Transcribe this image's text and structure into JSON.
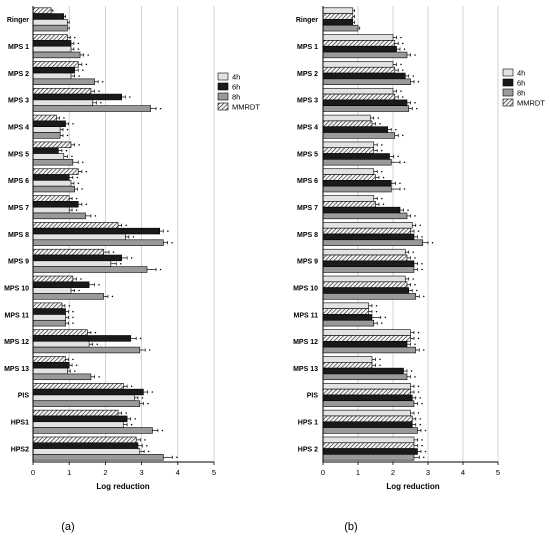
{
  "panels": [
    {
      "letter": "(a)",
      "legend_position": "right",
      "chart_data": {
        "type": "bar",
        "orientation": "horizontal",
        "xlabel": "Log reduction",
        "xlim": [
          0,
          5
        ],
        "xticks": [
          "0",
          "1",
          "2",
          "3",
          "4",
          "5"
        ],
        "grid": "vertical",
        "categories": [
          "Ringer",
          "MPS 1",
          "MPS 2",
          "MPS 3",
          "MPS 4",
          "MPS 5",
          "MPS 6",
          "MPS 7",
          "MPS 8",
          "MPS 9",
          "MPS 10",
          "MPS 11",
          "MPS 12",
          "MPS 13",
          "PIS",
          "HPS1",
          "HPS2"
        ],
        "series": [
          {
            "name": "MMRDT",
            "pattern": "hatched",
            "values": [
              0.5,
              0.95,
              1.25,
              1.6,
              0.65,
              1.05,
              1.25,
              1.0,
              2.35,
              1.95,
              1.1,
              0.8,
              1.5,
              0.9,
              2.5,
              2.35,
              2.85
            ],
            "errors": [
              0.05,
              0.08,
              0.1,
              0.1,
              0.08,
              0.1,
              0.1,
              0.08,
              0.1,
              0.15,
              0.1,
              0.08,
              0.1,
              0.08,
              0.1,
              0.1,
              0.12
            ]
          },
          {
            "name": "6h",
            "pattern": "solid-black",
            "values": [
              0.85,
              1.05,
              1.15,
              2.45,
              0.9,
              0.7,
              1.0,
              1.25,
              3.5,
              2.45,
              1.55,
              0.9,
              2.7,
              1.0,
              3.05,
              2.6,
              2.9
            ],
            "errors": [
              0.05,
              0.08,
              0.1,
              0.1,
              0.08,
              0.1,
              0.1,
              0.1,
              0.1,
              0.15,
              0.15,
              0.08,
              0.15,
              0.08,
              0.12,
              0.1,
              0.12
            ]
          },
          {
            "name": "4h",
            "pattern": "light-gray",
            "values": [
              0.95,
              1.05,
              1.05,
              1.65,
              0.75,
              0.85,
              1.05,
              1.0,
              2.55,
              2.15,
              1.05,
              0.9,
              1.55,
              0.95,
              2.8,
              2.5,
              2.95
            ],
            "errors": [
              0.05,
              0.08,
              0.1,
              0.1,
              0.08,
              0.1,
              0.08,
              0.08,
              0.1,
              0.15,
              0.1,
              0.08,
              0.1,
              0.08,
              0.1,
              0.1,
              0.12
            ]
          },
          {
            "name": "8h",
            "pattern": "dark-gray",
            "values": [
              0.95,
              1.3,
              1.7,
              3.25,
              0.75,
              1.1,
              1.15,
              1.45,
              3.6,
              3.15,
              1.95,
              0.9,
              2.95,
              1.6,
              2.95,
              3.3,
              3.6
            ],
            "errors": [
              0.05,
              0.1,
              0.1,
              0.15,
              0.08,
              0.15,
              0.08,
              0.15,
              0.12,
              0.25,
              0.12,
              0.08,
              0.15,
              0.1,
              0.1,
              0.15,
              0.25
            ]
          }
        ],
        "legend": [
          "4h",
          "6h",
          "8h",
          "MMRDT"
        ]
      }
    },
    {
      "letter": "(b)",
      "legend_position": "right",
      "chart_data": {
        "type": "bar",
        "orientation": "horizontal",
        "xlabel": "Log reduction",
        "xlim": [
          0,
          5
        ],
        "xticks": [
          "0",
          "1",
          "2",
          "3",
          "4",
          "5"
        ],
        "grid": "vertical",
        "categories": [
          "Ringer",
          "MPS 1",
          "MPS 2",
          "MPS 3",
          "MPS 4",
          "MPS 5",
          "MPS 6",
          "MPS 7",
          "MPS 8",
          "MPS 9",
          "MPS 10",
          "MPS 11",
          "MPS 12",
          "MPS 13",
          "PIS",
          "HPS 1",
          "HPS 2"
        ],
        "series": [
          {
            "name": "4h",
            "pattern": "light-gray",
            "values": [
              0.85,
              2.0,
              2.0,
              2.0,
              1.35,
              1.45,
              1.45,
              1.45,
              2.55,
              2.35,
              2.35,
              1.3,
              2.5,
              1.4,
              2.5,
              2.5,
              2.6
            ],
            "errors": [
              0.05,
              0.1,
              0.1,
              0.1,
              0.1,
              0.1,
              0.1,
              0.1,
              0.1,
              0.1,
              0.1,
              0.1,
              0.1,
              0.1,
              0.1,
              0.1,
              0.1
            ]
          },
          {
            "name": "MMRDT",
            "pattern": "hatched",
            "values": [
              0.85,
              2.05,
              2.05,
              2.05,
              1.4,
              1.45,
              1.5,
              1.5,
              2.5,
              2.4,
              2.4,
              1.3,
              2.5,
              1.4,
              2.5,
              2.55,
              2.6
            ],
            "errors": [
              0.05,
              0.1,
              0.1,
              0.1,
              0.1,
              0.1,
              0.1,
              0.1,
              0.1,
              0.1,
              0.1,
              0.1,
              0.1,
              0.1,
              0.1,
              0.1,
              0.1
            ]
          },
          {
            "name": "6h",
            "pattern": "solid-black",
            "values": [
              0.85,
              2.1,
              2.35,
              2.4,
              1.85,
              1.9,
              1.95,
              2.2,
              2.6,
              2.6,
              2.45,
              1.4,
              2.4,
              2.3,
              2.55,
              2.55,
              2.7
            ],
            "errors": [
              0.05,
              0.1,
              0.1,
              0.1,
              0.1,
              0.12,
              0.12,
              0.1,
              0.1,
              0.1,
              0.1,
              0.25,
              0.1,
              0.1,
              0.1,
              0.1,
              0.1
            ]
          },
          {
            "name": "8h",
            "pattern": "dark-gray",
            "values": [
              1.0,
              2.4,
              2.5,
              2.45,
              2.05,
              1.95,
              1.95,
              2.4,
              2.85,
              2.6,
              2.65,
              1.45,
              2.65,
              2.4,
              2.6,
              2.7,
              2.6
            ],
            "errors": [
              0.05,
              0.1,
              0.1,
              0.1,
              0.1,
              0.25,
              0.25,
              0.1,
              0.15,
              0.1,
              0.1,
              0.1,
              0.1,
              0.1,
              0.1,
              0.1,
              0.15
            ]
          }
        ],
        "legend": [
          "4h",
          "6h",
          "8h",
          "MMRDT"
        ]
      }
    }
  ],
  "colors": {
    "light_gray": "#e3e3e3",
    "dark_gray": "#9a9a9a",
    "black": "#1a1a1a",
    "hatch_bg": "#f6f6f6",
    "hatch_line": "#222222",
    "grid": "#c8c8c8",
    "axis": "#000000"
  }
}
